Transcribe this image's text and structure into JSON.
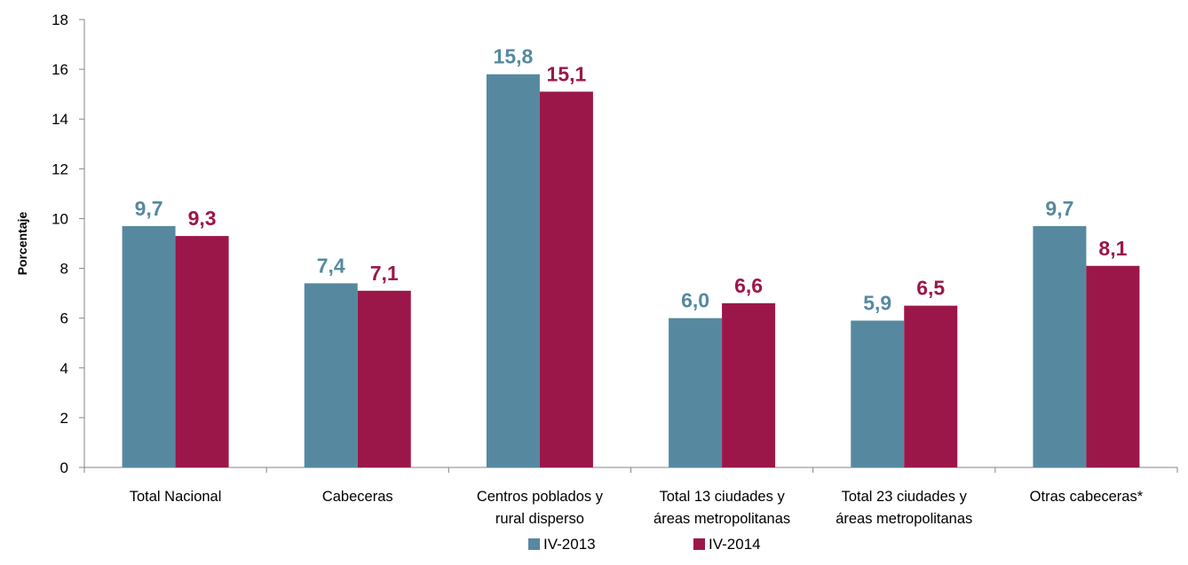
{
  "chart_data": {
    "type": "bar",
    "ylabel": "Porcentaje",
    "xlabel": "",
    "ylim": [
      0,
      18
    ],
    "yticks": [
      0,
      2,
      4,
      6,
      8,
      10,
      12,
      14,
      16,
      18
    ],
    "categories": [
      [
        "Total Nacional"
      ],
      [
        "Cabeceras"
      ],
      [
        "Centros poblados y",
        "rural disperso"
      ],
      [
        "Total 13 ciudades y",
        "áreas metropolitanas"
      ],
      [
        "Total 23 ciudades y",
        "áreas metropolitanas"
      ],
      [
        "Otras cabeceras*"
      ]
    ],
    "series": [
      {
        "name": "IV-2013",
        "color": "#5689a0",
        "values": [
          9.7,
          7.4,
          15.8,
          6.0,
          5.9,
          9.7
        ],
        "labels": [
          "9,7",
          "7,4",
          "15,8",
          "6,0",
          "5,9",
          "9,7"
        ]
      },
      {
        "name": "IV-2014",
        "color": "#9b174a",
        "values": [
          9.3,
          7.1,
          15.1,
          6.6,
          6.5,
          8.1
        ],
        "labels": [
          "9,3",
          "7,1",
          "15,1",
          "6,6",
          "6,5",
          "8,1"
        ]
      }
    ],
    "grid": false,
    "legend": "bottom"
  }
}
